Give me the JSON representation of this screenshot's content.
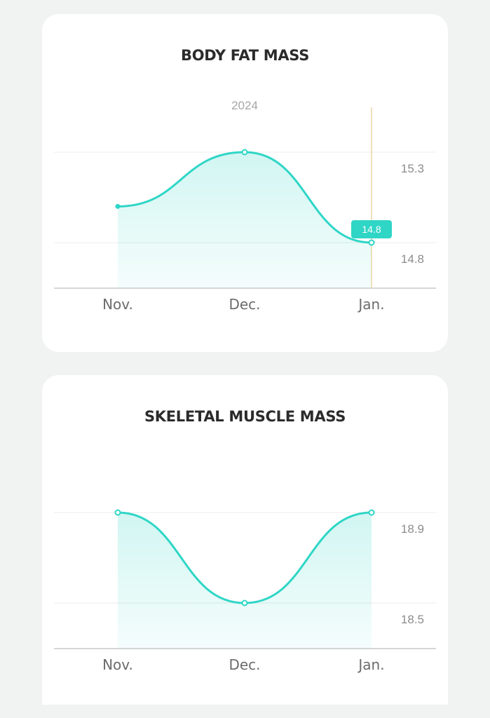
{
  "theme": {
    "accent": "#2fd6c6",
    "background": "#f1f3f2",
    "card": "#ffffff",
    "highlight_line": "#edd5a6"
  },
  "charts": [
    {
      "id": "fat",
      "title": "BODY FAT MASS",
      "year_label": "2024",
      "tooltip": "14.8",
      "chart_data": {
        "type": "area",
        "title": "BODY FAT MASS",
        "categories": [
          "Nov.",
          "Dec.",
          "Jan."
        ],
        "values": [
          15.0,
          15.3,
          14.8
        ],
        "y_ticks": [
          15.3,
          14.8
        ],
        "ylim": [
          14.55,
          15.3
        ],
        "highlighted_index": 2,
        "grid": true
      }
    },
    {
      "id": "muscle",
      "title": "SKELETAL MUSCLE MASS",
      "year_label": "",
      "tooltip": "",
      "chart_data": {
        "type": "area",
        "title": "SKELETAL MUSCLE MASS",
        "categories": [
          "Nov.",
          "Dec.",
          "Jan."
        ],
        "values": [
          18.9,
          18.5,
          18.9
        ],
        "y_ticks": [
          18.9,
          18.5
        ],
        "ylim": [
          18.3,
          18.9
        ],
        "highlighted_index": null,
        "grid": true
      }
    }
  ]
}
